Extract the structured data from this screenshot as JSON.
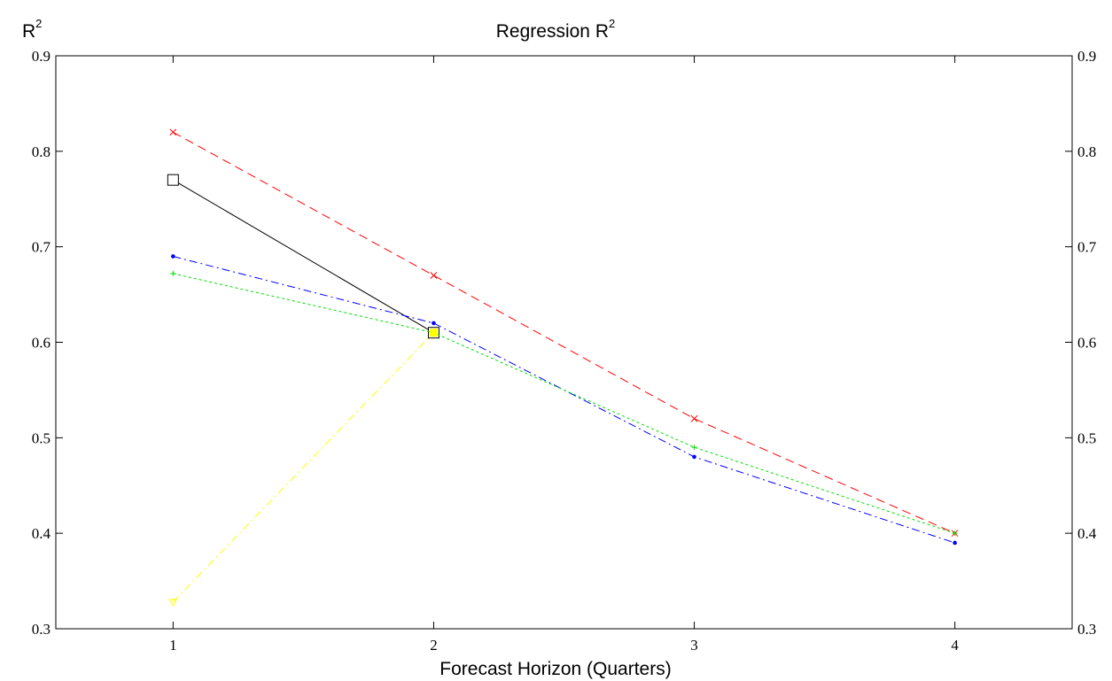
{
  "chart_data": {
    "type": "line",
    "title": "Regression R",
    "title_superscript": "2",
    "ylabel": "R",
    "ylabel_superscript": "2",
    "xlabel": "Forecast Horizon (Quarters)",
    "x": [
      1,
      2,
      3,
      4
    ],
    "xlim": [
      0.55,
      4.45
    ],
    "ylim": [
      0.3,
      0.9
    ],
    "xticks": [
      1,
      2,
      3,
      4
    ],
    "xtick_labels": [
      "1",
      "2",
      "3",
      "4"
    ],
    "yticks": [
      0.3,
      0.4,
      0.5,
      0.6,
      0.7,
      0.8,
      0.9
    ],
    "ytick_labels": [
      "0.3",
      "0.4",
      "0.5",
      "0.6",
      "0.7",
      "0.8",
      "0.9"
    ],
    "grid": false,
    "series": [
      {
        "x": [
          1,
          2
        ],
        "values": [
          0.77,
          0.61
        ],
        "color": "#000000",
        "dash": "",
        "marker": "square"
      },
      {
        "x": [
          1,
          2,
          3,
          4
        ],
        "values": [
          0.82,
          0.67,
          0.52,
          0.4
        ],
        "color": "#ff0000",
        "dash": "10,6",
        "marker": "x"
      },
      {
        "x": [
          1,
          2,
          3,
          4
        ],
        "values": [
          0.69,
          0.62,
          0.48,
          0.39
        ],
        "color": "#0000ff",
        "dash": "9,4,2,4",
        "marker": "dot"
      },
      {
        "x": [
          1,
          2,
          3,
          4
        ],
        "values": [
          0.672,
          0.61,
          0.49,
          0.4
        ],
        "color": "#00dd00",
        "dash": "3,3",
        "marker": "plus"
      },
      {
        "x": [
          1,
          2
        ],
        "values": [
          0.328,
          0.61
        ],
        "color": "#ffff00",
        "dash": "9,4,2,4",
        "marker": "triangle",
        "fill_marker_at": 1
      }
    ]
  }
}
